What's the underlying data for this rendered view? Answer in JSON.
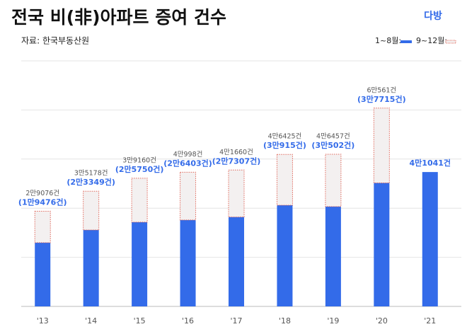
{
  "chart_data": {
    "type": "stacked-bar",
    "title": "전국 비(非)아파트 증여 건수",
    "source": "자료: 한국부동산원",
    "logo": "다방",
    "categories": [
      "'13",
      "'14",
      "'15",
      "'16",
      "'17",
      "'18",
      "'19",
      "'20",
      "'21"
    ],
    "series": [
      {
        "name": "1~8월:",
        "color": "#336be9",
        "values": [
          19476,
          23349,
          25750,
          26403,
          27307,
          30915,
          30502,
          37715,
          41041
        ],
        "value_labels": [
          "(1만9476건)",
          "(2만3349건)",
          "(2만5750건)",
          "(2만6403건)",
          "(2만7307건)",
          "(3만915건)",
          "(3만502건)",
          "(3만7715건)",
          "4만1041건"
        ]
      },
      {
        "name": "9~12월:",
        "color": "#f3f0f0",
        "stroke": "#e0675a",
        "values": [
          9600,
          11829,
          13410,
          14595,
          14353,
          15510,
          15955,
          22846,
          null
        ]
      }
    ],
    "totals": {
      "values": [
        29076,
        35178,
        39160,
        40998,
        41660,
        46425,
        46457,
        60561,
        null
      ],
      "value_labels": [
        "2만9076건",
        "3만5178건",
        "3만9160건",
        "4만998건",
        "4만1660건",
        "4만6425건",
        "4만6457건",
        "6만561건",
        null
      ]
    },
    "ylim": [
      0,
      75000
    ],
    "yticks": [
      0,
      15000,
      30000,
      45000,
      60000,
      75000
    ],
    "grid": true
  }
}
